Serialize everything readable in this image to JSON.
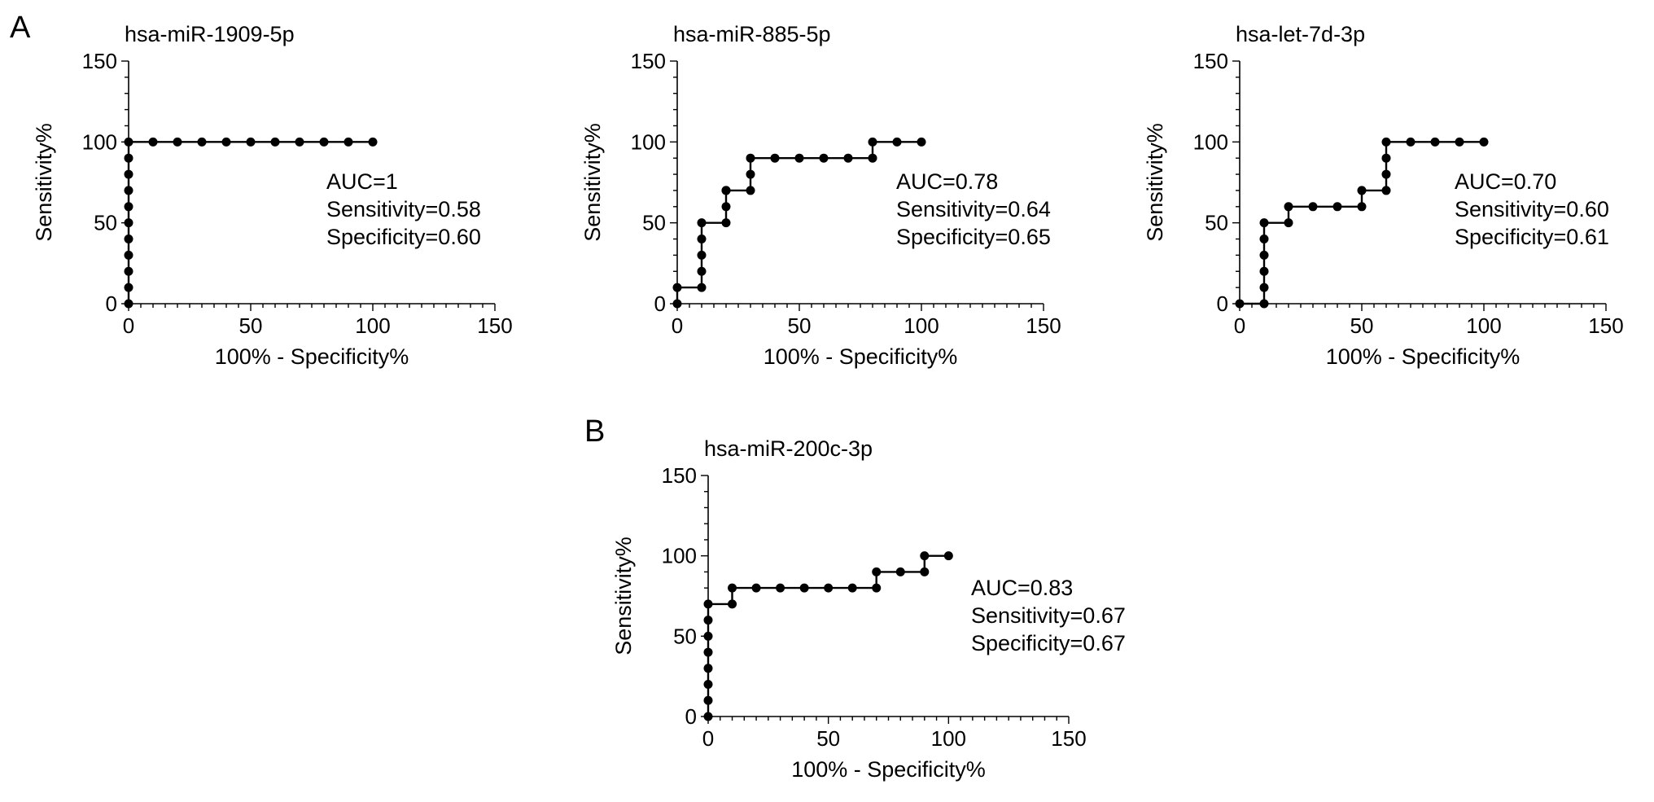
{
  "figure": {
    "panel_letters": [
      "A",
      "B"
    ]
  },
  "chart_data": [
    {
      "panel": "A",
      "type": "line",
      "title": "hsa-miR-1909-5p",
      "xlabel": "100% - Specificity%",
      "ylabel": "Sensitivity%",
      "xlim": [
        0,
        150
      ],
      "ylim": [
        0,
        150
      ],
      "x_ticks": [
        0,
        50,
        100,
        150
      ],
      "y_ticks": [
        0,
        50,
        100,
        150
      ],
      "x": [
        0,
        0,
        0,
        0,
        0,
        0,
        0,
        0,
        0,
        0,
        0,
        10,
        20,
        30,
        40,
        50,
        60,
        70,
        80,
        90,
        100
      ],
      "y": [
        0,
        10,
        20,
        30,
        40,
        50,
        60,
        70,
        80,
        90,
        100,
        100,
        100,
        100,
        100,
        100,
        100,
        100,
        100,
        100,
        100
      ],
      "annotations": [
        "AUC=1",
        "Sensitivity=0.58",
        "Specificity=0.60"
      ]
    },
    {
      "panel": "A",
      "type": "line",
      "title": "hsa-miR-885-5p",
      "xlabel": "100% - Specificity%",
      "ylabel": "Sensitivity%",
      "xlim": [
        0,
        150
      ],
      "ylim": [
        0,
        150
      ],
      "x_ticks": [
        0,
        50,
        100,
        150
      ],
      "y_ticks": [
        0,
        50,
        100,
        150
      ],
      "x": [
        0,
        0,
        10,
        10,
        10,
        10,
        10,
        20,
        20,
        20,
        20,
        30,
        30,
        30,
        40,
        50,
        60,
        70,
        80,
        80,
        90,
        100
      ],
      "y": [
        0,
        10,
        10,
        20,
        30,
        40,
        50,
        50,
        60,
        70,
        70,
        70,
        80,
        90,
        90,
        90,
        90,
        90,
        90,
        100,
        100,
        100
      ],
      "annotations": [
        "AUC=0.78",
        "Sensitivity=0.64",
        "Specificity=0.65"
      ]
    },
    {
      "panel": "A",
      "type": "line",
      "title": "hsa-let-7d-3p",
      "xlabel": "100% - Specificity%",
      "ylabel": "Sensitivity%",
      "xlim": [
        0,
        150
      ],
      "ylim": [
        0,
        150
      ],
      "x_ticks": [
        0,
        50,
        100,
        150
      ],
      "y_ticks": [
        0,
        50,
        100,
        150
      ],
      "x": [
        0,
        10,
        10,
        10,
        10,
        10,
        10,
        20,
        20,
        30,
        40,
        50,
        50,
        60,
        60,
        60,
        60,
        70,
        80,
        90,
        100
      ],
      "y": [
        0,
        0,
        10,
        20,
        30,
        40,
        50,
        50,
        60,
        60,
        60,
        60,
        70,
        70,
        80,
        90,
        100,
        100,
        100,
        100,
        100
      ],
      "annotations": [
        "AUC=0.70",
        "Sensitivity=0.60",
        "Specificity=0.61"
      ]
    },
    {
      "panel": "B",
      "type": "line",
      "title": "hsa-miR-200c-3p",
      "xlabel": "100% - Specificity%",
      "ylabel": "Sensitivity%",
      "xlim": [
        0,
        150
      ],
      "ylim": [
        0,
        150
      ],
      "x_ticks": [
        0,
        50,
        100,
        150
      ],
      "y_ticks": [
        0,
        50,
        100,
        150
      ],
      "x": [
        0,
        0,
        0,
        0,
        0,
        0,
        0,
        0,
        10,
        10,
        20,
        30,
        40,
        50,
        60,
        70,
        70,
        80,
        90,
        90,
        100
      ],
      "y": [
        0,
        10,
        20,
        30,
        40,
        50,
        60,
        70,
        70,
        80,
        80,
        80,
        80,
        80,
        80,
        80,
        90,
        90,
        90,
        100,
        100
      ],
      "annotations": [
        "AUC=0.83",
        "Sensitivity=0.67",
        "Specificity=0.67"
      ]
    }
  ]
}
